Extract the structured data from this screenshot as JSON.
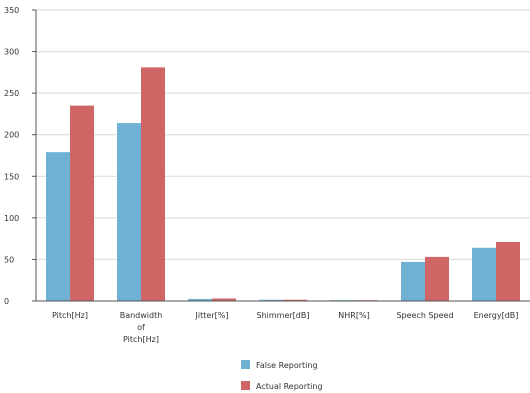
{
  "chart_data": {
    "type": "bar",
    "categories": [
      [
        "Pitch[Hz]"
      ],
      [
        "Bandwidth",
        "of",
        "Pitch[Hz]"
      ],
      [
        "Jitter[%]"
      ],
      [
        "Shimmer[dB]"
      ],
      [
        "NHR[%]"
      ],
      [
        "Speech Speed"
      ],
      [
        "Energy[dB]"
      ]
    ],
    "series": [
      {
        "name": "False Reporting",
        "color": "#6fb1d2",
        "values": [
          179,
          214,
          2.5,
          1.5,
          0.8,
          47,
          64
        ]
      },
      {
        "name": "Actual Reporting",
        "color": "#d06565",
        "values": [
          235,
          281,
          3,
          1.5,
          0.8,
          53,
          71
        ]
      }
    ],
    "ylim": [
      0,
      350
    ],
    "yticks": [
      0,
      50,
      100,
      150,
      200,
      250,
      300,
      350
    ],
    "grid": true,
    "legend_position": "bottom-center"
  }
}
